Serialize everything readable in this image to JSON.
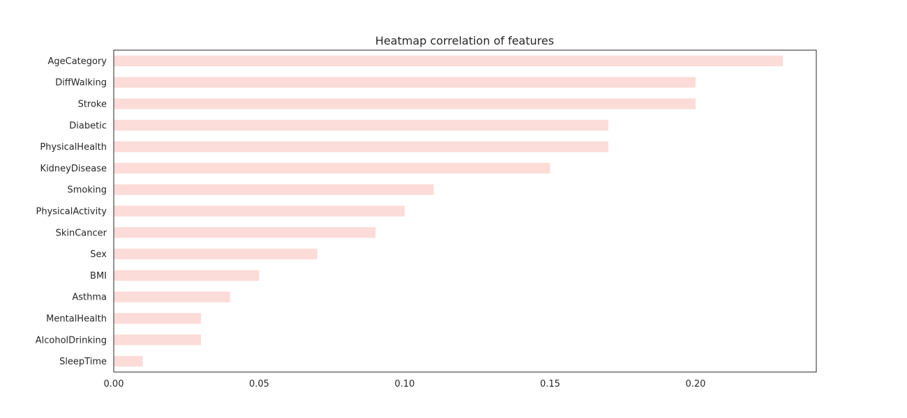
{
  "chart_data": {
    "type": "bar",
    "orientation": "horizontal",
    "title": "Heatmap correlation of features",
    "xlabel": "",
    "ylabel": "",
    "categories": [
      "AgeCategory",
      "DiffWalking",
      "Stroke",
      "Diabetic",
      "PhysicalHealth",
      "KidneyDisease",
      "Smoking",
      "PhysicalActivity",
      "SkinCancer",
      "Sex",
      "BMI",
      "Asthma",
      "MentalHealth",
      "AlcoholDrinking",
      "SleepTime"
    ],
    "values": [
      0.23,
      0.2,
      0.2,
      0.17,
      0.17,
      0.15,
      0.11,
      0.1,
      0.09,
      0.07,
      0.05,
      0.04,
      0.03,
      0.03,
      0.01
    ],
    "xlim": [
      0,
      0.2415
    ],
    "xticks": [
      0.0,
      0.05,
      0.1,
      0.15,
      0.2
    ],
    "xtick_labels": [
      "0.00",
      "0.05",
      "0.10",
      "0.15",
      "0.20"
    ],
    "grid": false,
    "legend": "none",
    "bar_color": "#fcdcd8",
    "axis_color": "#262626",
    "text_color": "#262626",
    "background": "#ffffff"
  }
}
